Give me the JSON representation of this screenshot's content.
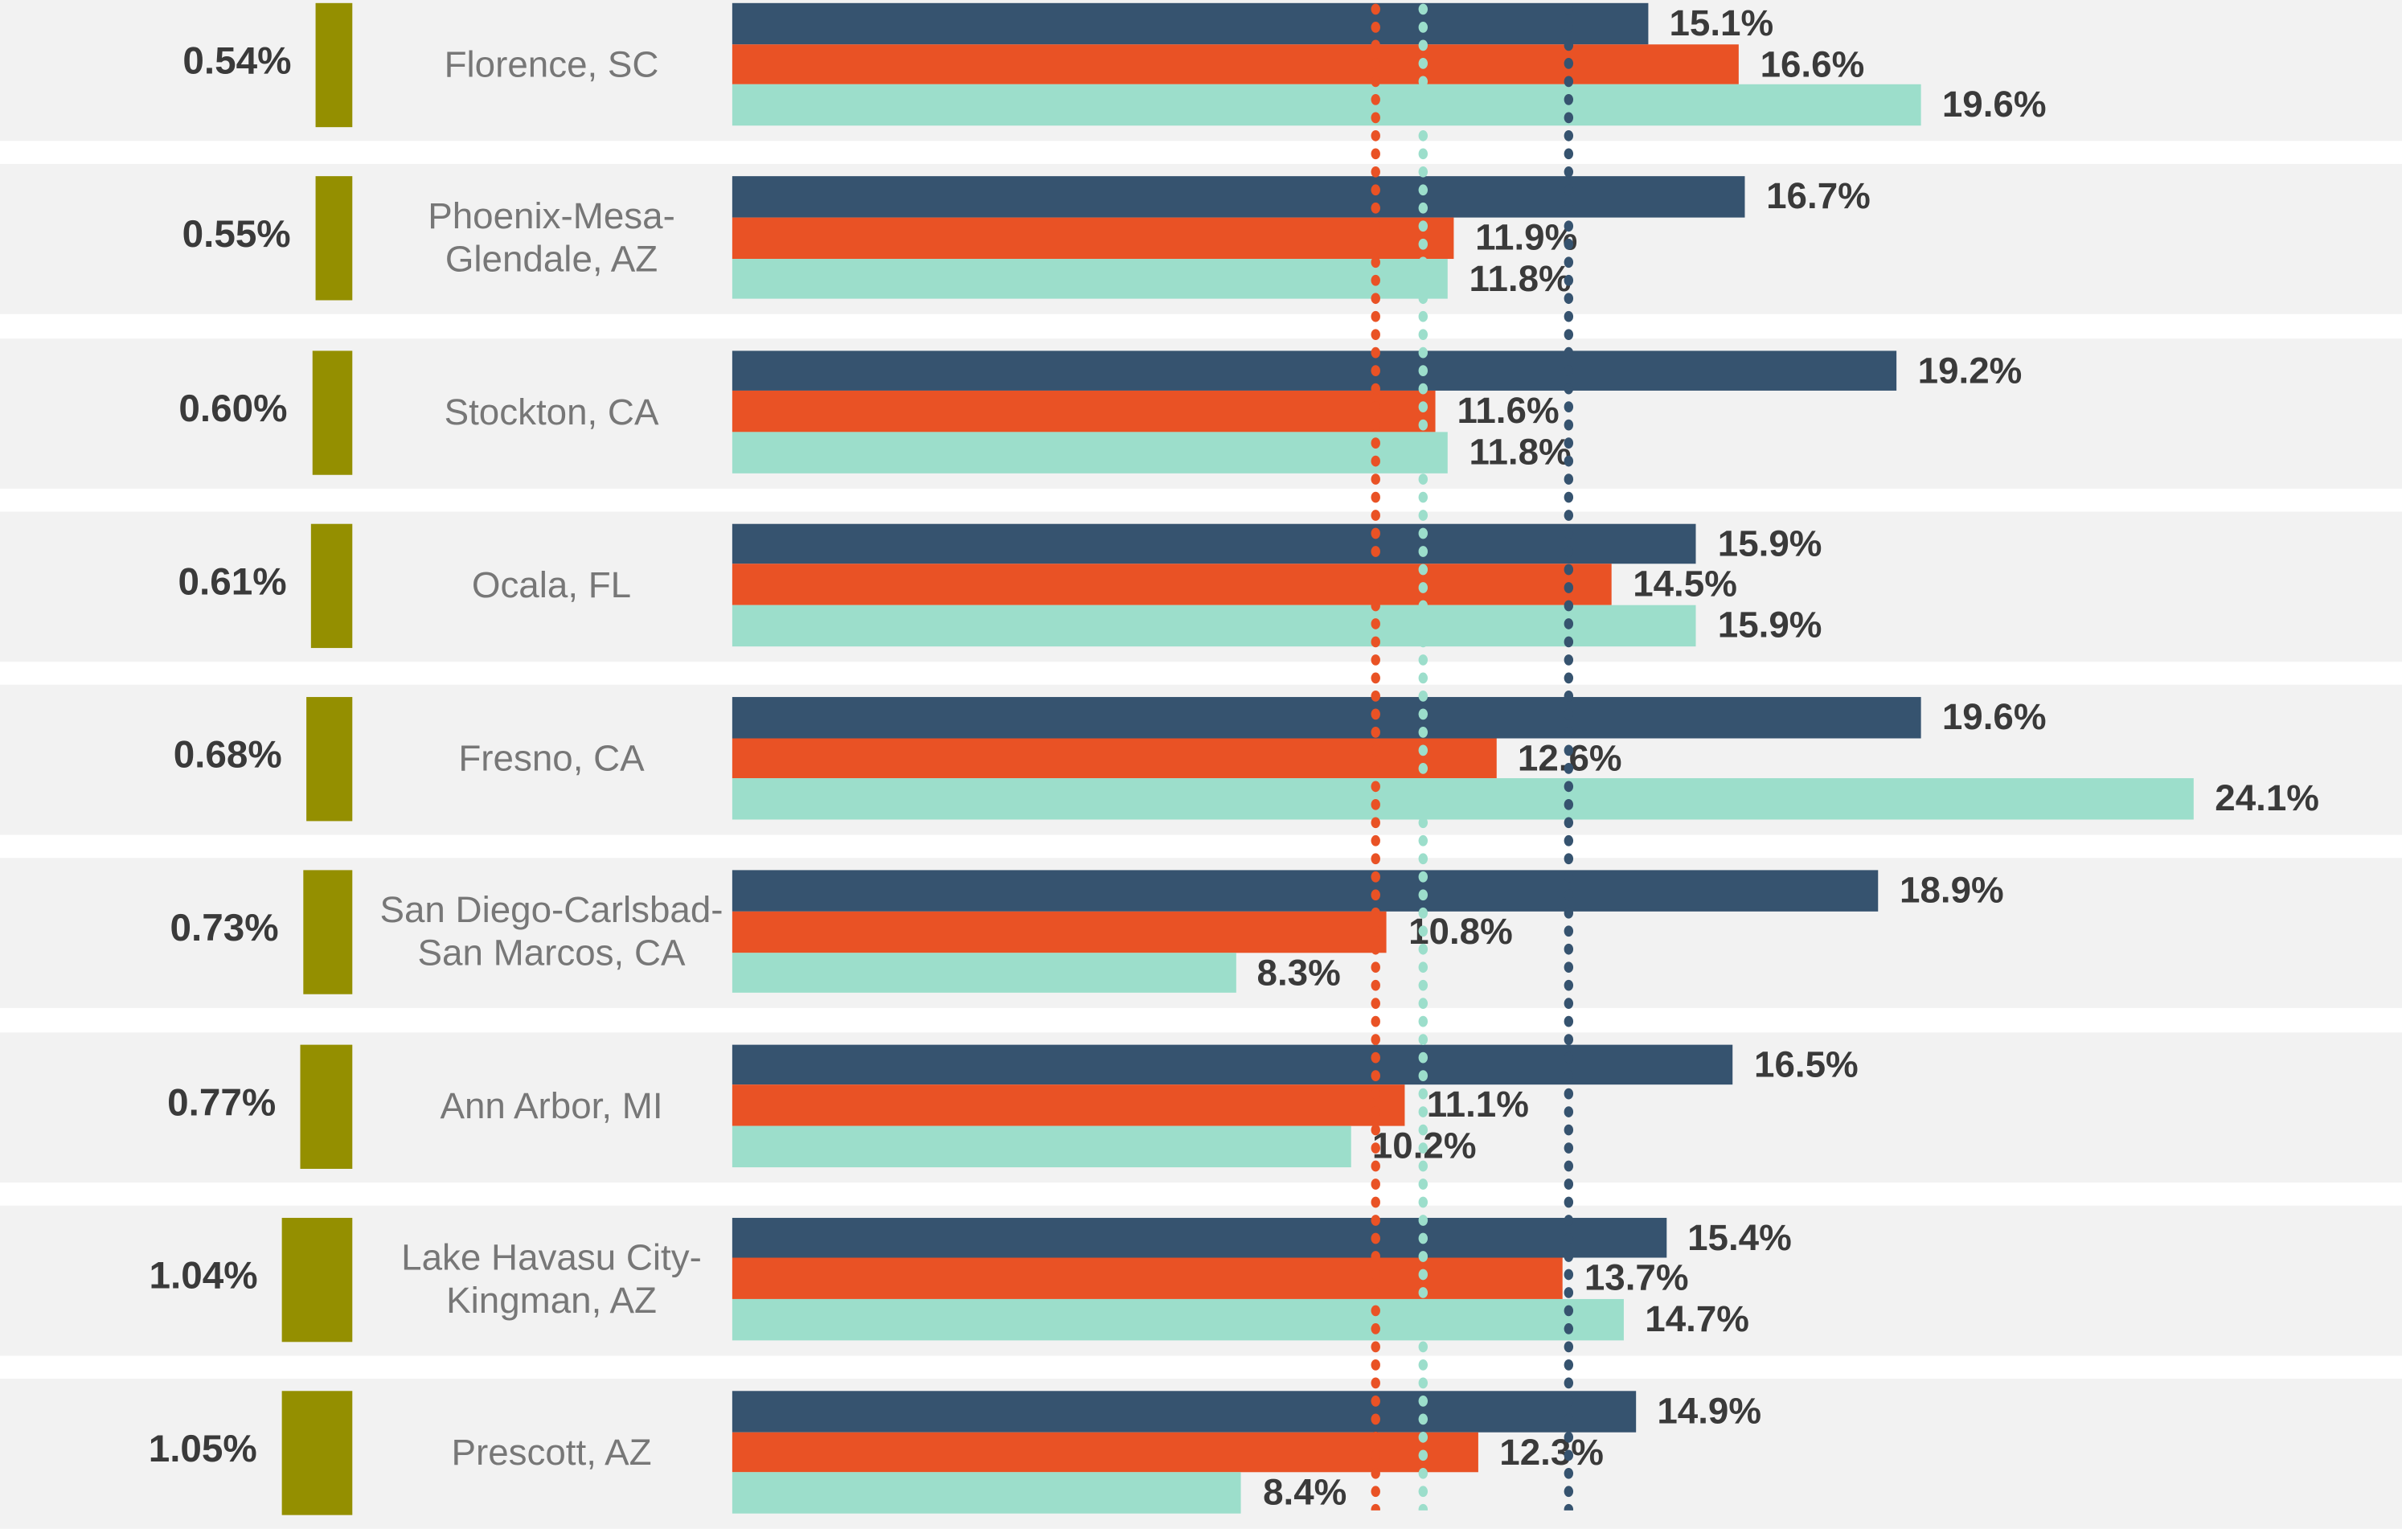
{
  "chart_data": {
    "type": "bar",
    "orientation": "horizontal",
    "categories": [
      "Florence, SC",
      "Phoenix-Mesa-Glendale, AZ",
      "Stockton, CA",
      "Ocala, FL",
      "Fresno, CA",
      "San Diego-Carlsbad-San Marcos, CA",
      "Ann Arbor, MI",
      "Lake Havasu City-Kingman, AZ",
      "Prescott, AZ"
    ],
    "left_values": [
      0.54,
      0.55,
      0.6,
      0.61,
      0.68,
      0.73,
      0.77,
      1.04,
      1.05
    ],
    "left_labels": [
      "0.54%",
      "0.55%",
      "0.60%",
      "0.61%",
      "0.68%",
      "0.73%",
      "0.77%",
      "1.04%",
      "1.05%"
    ],
    "series": [
      {
        "color": "#36536f",
        "values": [
          15.1,
          16.7,
          19.2,
          15.9,
          19.6,
          18.9,
          16.5,
          15.4,
          14.9
        ]
      },
      {
        "color": "#e95225",
        "values": [
          16.6,
          11.9,
          11.6,
          14.5,
          12.6,
          10.8,
          11.1,
          13.7,
          12.3
        ]
      },
      {
        "color": "#9cdecb",
        "values": [
          19.6,
          11.8,
          11.8,
          15.9,
          24.1,
          8.3,
          10.2,
          14.7,
          8.4
        ]
      }
    ],
    "reference_lines": [
      {
        "color": "#e95225",
        "value": 10.6
      },
      {
        "color": "#9cdecb",
        "value": 11.4
      },
      {
        "color": "#36536f",
        "value": 13.8
      }
    ],
    "left_bar_color": "#948f00",
    "value_suffix": "%",
    "xlim": [
      0,
      27
    ],
    "grid": false,
    "legend": "none"
  }
}
